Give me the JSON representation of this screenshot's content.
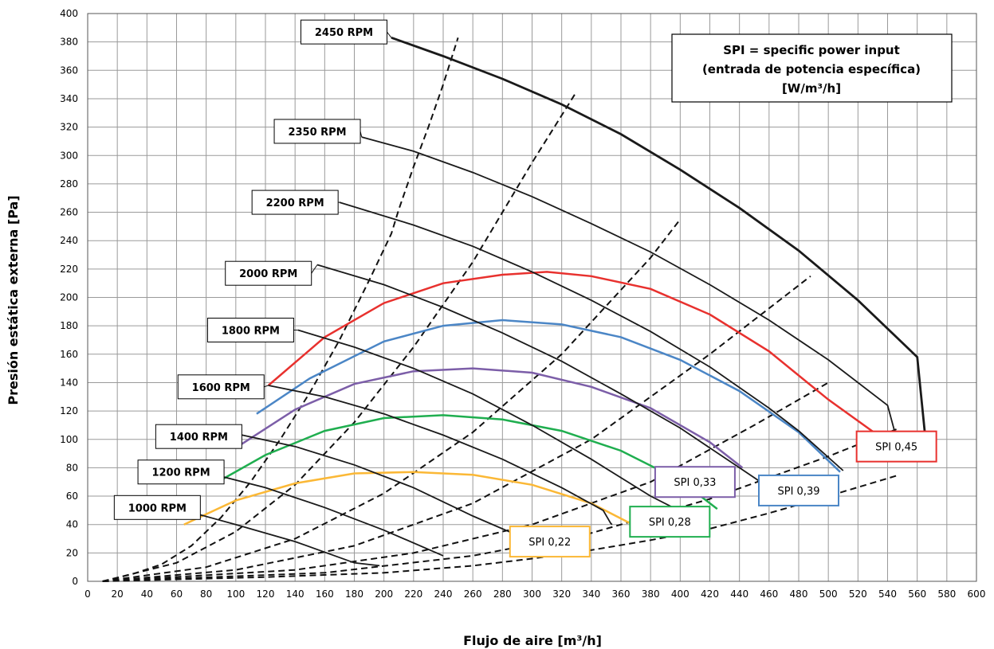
{
  "chart_data": {
    "type": "line",
    "xlabel": "Flujo de aire [m³/h]",
    "ylabel": "Presión estática externa [Pa]",
    "xlim": [
      0,
      600
    ],
    "ylim": [
      0,
      400
    ],
    "x_ticks": [
      0,
      20,
      40,
      60,
      80,
      100,
      120,
      140,
      160,
      180,
      200,
      220,
      240,
      260,
      280,
      300,
      320,
      340,
      360,
      380,
      400,
      420,
      440,
      460,
      480,
      500,
      520,
      540,
      560,
      580,
      600
    ],
    "y_ticks": [
      0,
      20,
      40,
      60,
      80,
      100,
      120,
      140,
      160,
      180,
      200,
      220,
      240,
      260,
      280,
      300,
      320,
      340,
      360,
      380,
      400
    ],
    "grid": true,
    "legend_box": {
      "lines": [
        "SPI = specific power input",
        "(entrada de potencia específica)",
        "[W/m³/h]"
      ]
    },
    "fan_curves": [
      {
        "name": "1000 RPM",
        "color": "#1a1a1a",
        "points": [
          [
            65,
            50
          ],
          [
            100,
            40
          ],
          [
            140,
            28
          ],
          [
            180,
            13
          ],
          [
            197,
            11
          ]
        ]
      },
      {
        "name": "1200 RPM",
        "color": "#1a1a1a",
        "points": [
          [
            86,
            75
          ],
          [
            120,
            66
          ],
          [
            160,
            52
          ],
          [
            200,
            36
          ],
          [
            240,
            18
          ]
        ]
      },
      {
        "name": "1400 RPM",
        "color": "#1a1a1a",
        "points": [
          [
            100,
            104
          ],
          [
            140,
            95
          ],
          [
            180,
            82
          ],
          [
            220,
            66
          ],
          [
            260,
            46
          ],
          [
            300,
            28
          ]
        ]
      },
      {
        "name": "1600  RPM",
        "color": "#1a1a1a",
        "points": [
          [
            122,
            138
          ],
          [
            160,
            130
          ],
          [
            200,
            118
          ],
          [
            240,
            103
          ],
          [
            280,
            86
          ],
          [
            320,
            66
          ],
          [
            348,
            50
          ],
          [
            353,
            41
          ],
          [
            354,
            40
          ]
        ]
      },
      {
        "name": "1800 RPM",
        "color": "#1a1a1a",
        "points": [
          [
            142,
            177
          ],
          [
            180,
            165
          ],
          [
            220,
            150
          ],
          [
            260,
            132
          ],
          [
            300,
            110
          ],
          [
            340,
            86
          ],
          [
            380,
            60
          ],
          [
            414,
            42
          ]
        ]
      },
      {
        "name": "2000 RPM",
        "color": "#1a1a1a",
        "points": [
          [
            155,
            223
          ],
          [
            200,
            209
          ],
          [
            240,
            193
          ],
          [
            280,
            175
          ],
          [
            320,
            155
          ],
          [
            360,
            132
          ],
          [
            400,
            108
          ],
          [
            440,
            80
          ],
          [
            460,
            66
          ]
        ]
      },
      {
        "name": "2200 RPM",
        "color": "#1a1a1a",
        "points": [
          [
            170,
            267
          ],
          [
            220,
            251
          ],
          [
            260,
            236
          ],
          [
            300,
            218
          ],
          [
            340,
            198
          ],
          [
            380,
            176
          ],
          [
            420,
            151
          ],
          [
            460,
            122
          ],
          [
            480,
            106
          ],
          [
            510,
            78
          ]
        ]
      },
      {
        "name": "2350 RPM",
        "color": "#1a1a1a",
        "points": [
          [
            185,
            313
          ],
          [
            220,
            303
          ],
          [
            260,
            288
          ],
          [
            300,
            271
          ],
          [
            340,
            252
          ],
          [
            380,
            232
          ],
          [
            420,
            209
          ],
          [
            460,
            184
          ],
          [
            500,
            156
          ],
          [
            540,
            124
          ],
          [
            548,
            93
          ]
        ]
      },
      {
        "name": "2450 RPM",
        "color": "#1a1a1a",
        "points": [
          [
            205,
            383
          ],
          [
            240,
            370
          ],
          [
            280,
            354
          ],
          [
            320,
            336
          ],
          [
            360,
            315
          ],
          [
            400,
            290
          ],
          [
            440,
            263
          ],
          [
            480,
            233
          ],
          [
            520,
            198
          ],
          [
            560,
            158
          ],
          [
            565,
            106
          ]
        ]
      }
    ],
    "spi_curves": [
      {
        "name": "SPI 0,22",
        "color": "#fbb836",
        "points": [
          [
            65,
            40
          ],
          [
            100,
            57
          ],
          [
            140,
            69
          ],
          [
            180,
            76
          ],
          [
            220,
            77
          ],
          [
            260,
            75
          ],
          [
            300,
            68
          ],
          [
            340,
            55
          ],
          [
            366,
            41
          ]
        ]
      },
      {
        "name": "SPI 0,28",
        "color": "#1fae4f",
        "points": [
          [
            86,
            69
          ],
          [
            120,
            89
          ],
          [
            160,
            106
          ],
          [
            200,
            115
          ],
          [
            240,
            117
          ],
          [
            280,
            114
          ],
          [
            320,
            106
          ],
          [
            360,
            92
          ],
          [
            400,
            71
          ],
          [
            425,
            51
          ]
        ]
      },
      {
        "name": "SPI 0,33",
        "color": "#7c5ea8",
        "points": [
          [
            100,
            94
          ],
          [
            140,
            121
          ],
          [
            180,
            139
          ],
          [
            220,
            148
          ],
          [
            260,
            150
          ],
          [
            300,
            147
          ],
          [
            340,
            137
          ],
          [
            380,
            122
          ],
          [
            420,
            98
          ],
          [
            442,
            80
          ]
        ]
      },
      {
        "name": "SPI 0,39",
        "color": "#4b86c6",
        "points": [
          [
            114,
            118
          ],
          [
            150,
            143
          ],
          [
            200,
            169
          ],
          [
            240,
            180
          ],
          [
            280,
            184
          ],
          [
            320,
            181
          ],
          [
            360,
            172
          ],
          [
            400,
            156
          ],
          [
            440,
            134
          ],
          [
            480,
            105
          ],
          [
            508,
            77
          ]
        ]
      },
      {
        "name": "SPI 0,45",
        "color": "#e8312e",
        "points": [
          [
            122,
            138
          ],
          [
            160,
            172
          ],
          [
            200,
            196
          ],
          [
            240,
            210
          ],
          [
            280,
            216
          ],
          [
            310,
            218
          ],
          [
            340,
            215
          ],
          [
            380,
            206
          ],
          [
            420,
            188
          ],
          [
            460,
            162
          ],
          [
            500,
            128
          ],
          [
            548,
            92
          ]
        ]
      }
    ],
    "system_curves": [
      {
        "points": [
          [
            10,
            0
          ],
          [
            30,
            5
          ],
          [
            50,
            12
          ],
          [
            70,
            25
          ],
          [
            90,
            45
          ],
          [
            110,
            70
          ],
          [
            130,
            100
          ],
          [
            150,
            133
          ],
          [
            170,
            170
          ],
          [
            190,
            212
          ],
          [
            205,
            245
          ],
          [
            210,
            262
          ],
          [
            220,
            292
          ],
          [
            230,
            320
          ],
          [
            240,
            350
          ],
          [
            250,
            383
          ]
        ]
      },
      {
        "points": [
          [
            10,
            0
          ],
          [
            60,
            13
          ],
          [
            100,
            35
          ],
          [
            140,
            68
          ],
          [
            180,
            112
          ],
          [
            220,
            165
          ],
          [
            260,
            225
          ],
          [
            300,
            295
          ],
          [
            330,
            345
          ]
        ]
      },
      {
        "points": [
          [
            10,
            0
          ],
          [
            80,
            10
          ],
          [
            140,
            30
          ],
          [
            200,
            62
          ],
          [
            260,
            105
          ],
          [
            320,
            160
          ],
          [
            380,
            228
          ],
          [
            400,
            255
          ]
        ]
      },
      {
        "points": [
          [
            10,
            0
          ],
          [
            100,
            8
          ],
          [
            180,
            25
          ],
          [
            260,
            55
          ],
          [
            340,
            100
          ],
          [
            420,
            160
          ],
          [
            488,
            215
          ]
        ]
      },
      {
        "points": [
          [
            10,
            0
          ],
          [
            140,
            8
          ],
          [
            220,
            20
          ],
          [
            300,
            40
          ],
          [
            380,
            70
          ],
          [
            450,
            110
          ],
          [
            500,
            140
          ]
        ]
      },
      {
        "points": [
          [
            10,
            0
          ],
          [
            160,
            6
          ],
          [
            260,
            18
          ],
          [
            340,
            34
          ],
          [
            420,
            58
          ],
          [
            500,
            88
          ],
          [
            548,
            108
          ]
        ]
      },
      {
        "points": [
          [
            10,
            0
          ],
          [
            120,
            3
          ],
          [
            200,
            6
          ],
          [
            260,
            11
          ],
          [
            300,
            16
          ],
          [
            340,
            22
          ],
          [
            380,
            29
          ],
          [
            420,
            37
          ],
          [
            460,
            48
          ],
          [
            500,
            60
          ],
          [
            548,
            75
          ]
        ]
      }
    ],
    "rpm_labels": [
      {
        "text": "1000 RPM",
        "x": 47,
        "y": 52,
        "anchor": [
          65,
          50
        ]
      },
      {
        "text": "1200 RPM",
        "x": 63,
        "y": 77,
        "anchor": [
          86,
          75
        ]
      },
      {
        "text": "1400 RPM",
        "x": 75,
        "y": 102,
        "anchor": [
          100,
          104
        ]
      },
      {
        "text": "1600  RPM",
        "x": 90,
        "y": 137,
        "anchor": [
          122,
          138
        ]
      },
      {
        "text": "1800 RPM",
        "x": 110,
        "y": 177,
        "anchor": [
          142,
          177
        ]
      },
      {
        "text": "2000 RPM",
        "x": 122,
        "y": 217,
        "anchor": [
          155,
          223
        ]
      },
      {
        "text": "2200 RPM",
        "x": 140,
        "y": 267,
        "anchor": [
          170,
          267
        ]
      },
      {
        "text": "2350 RPM",
        "x": 155,
        "y": 317,
        "anchor": [
          185,
          313
        ]
      },
      {
        "text": "2450 RPM",
        "x": 173,
        "y": 387,
        "anchor": [
          205,
          383
        ]
      }
    ],
    "spi_labels": [
      {
        "text": "SPI 0,22",
        "x": 312,
        "y": 28
      },
      {
        "text": "SPI 0,28",
        "x": 393,
        "y": 42
      },
      {
        "text": "SPI 0,33",
        "x": 410,
        "y": 70
      },
      {
        "text": "SPI 0,39",
        "x": 480,
        "y": 64
      },
      {
        "text": "SPI 0,45",
        "x": 546,
        "y": 95
      }
    ]
  }
}
